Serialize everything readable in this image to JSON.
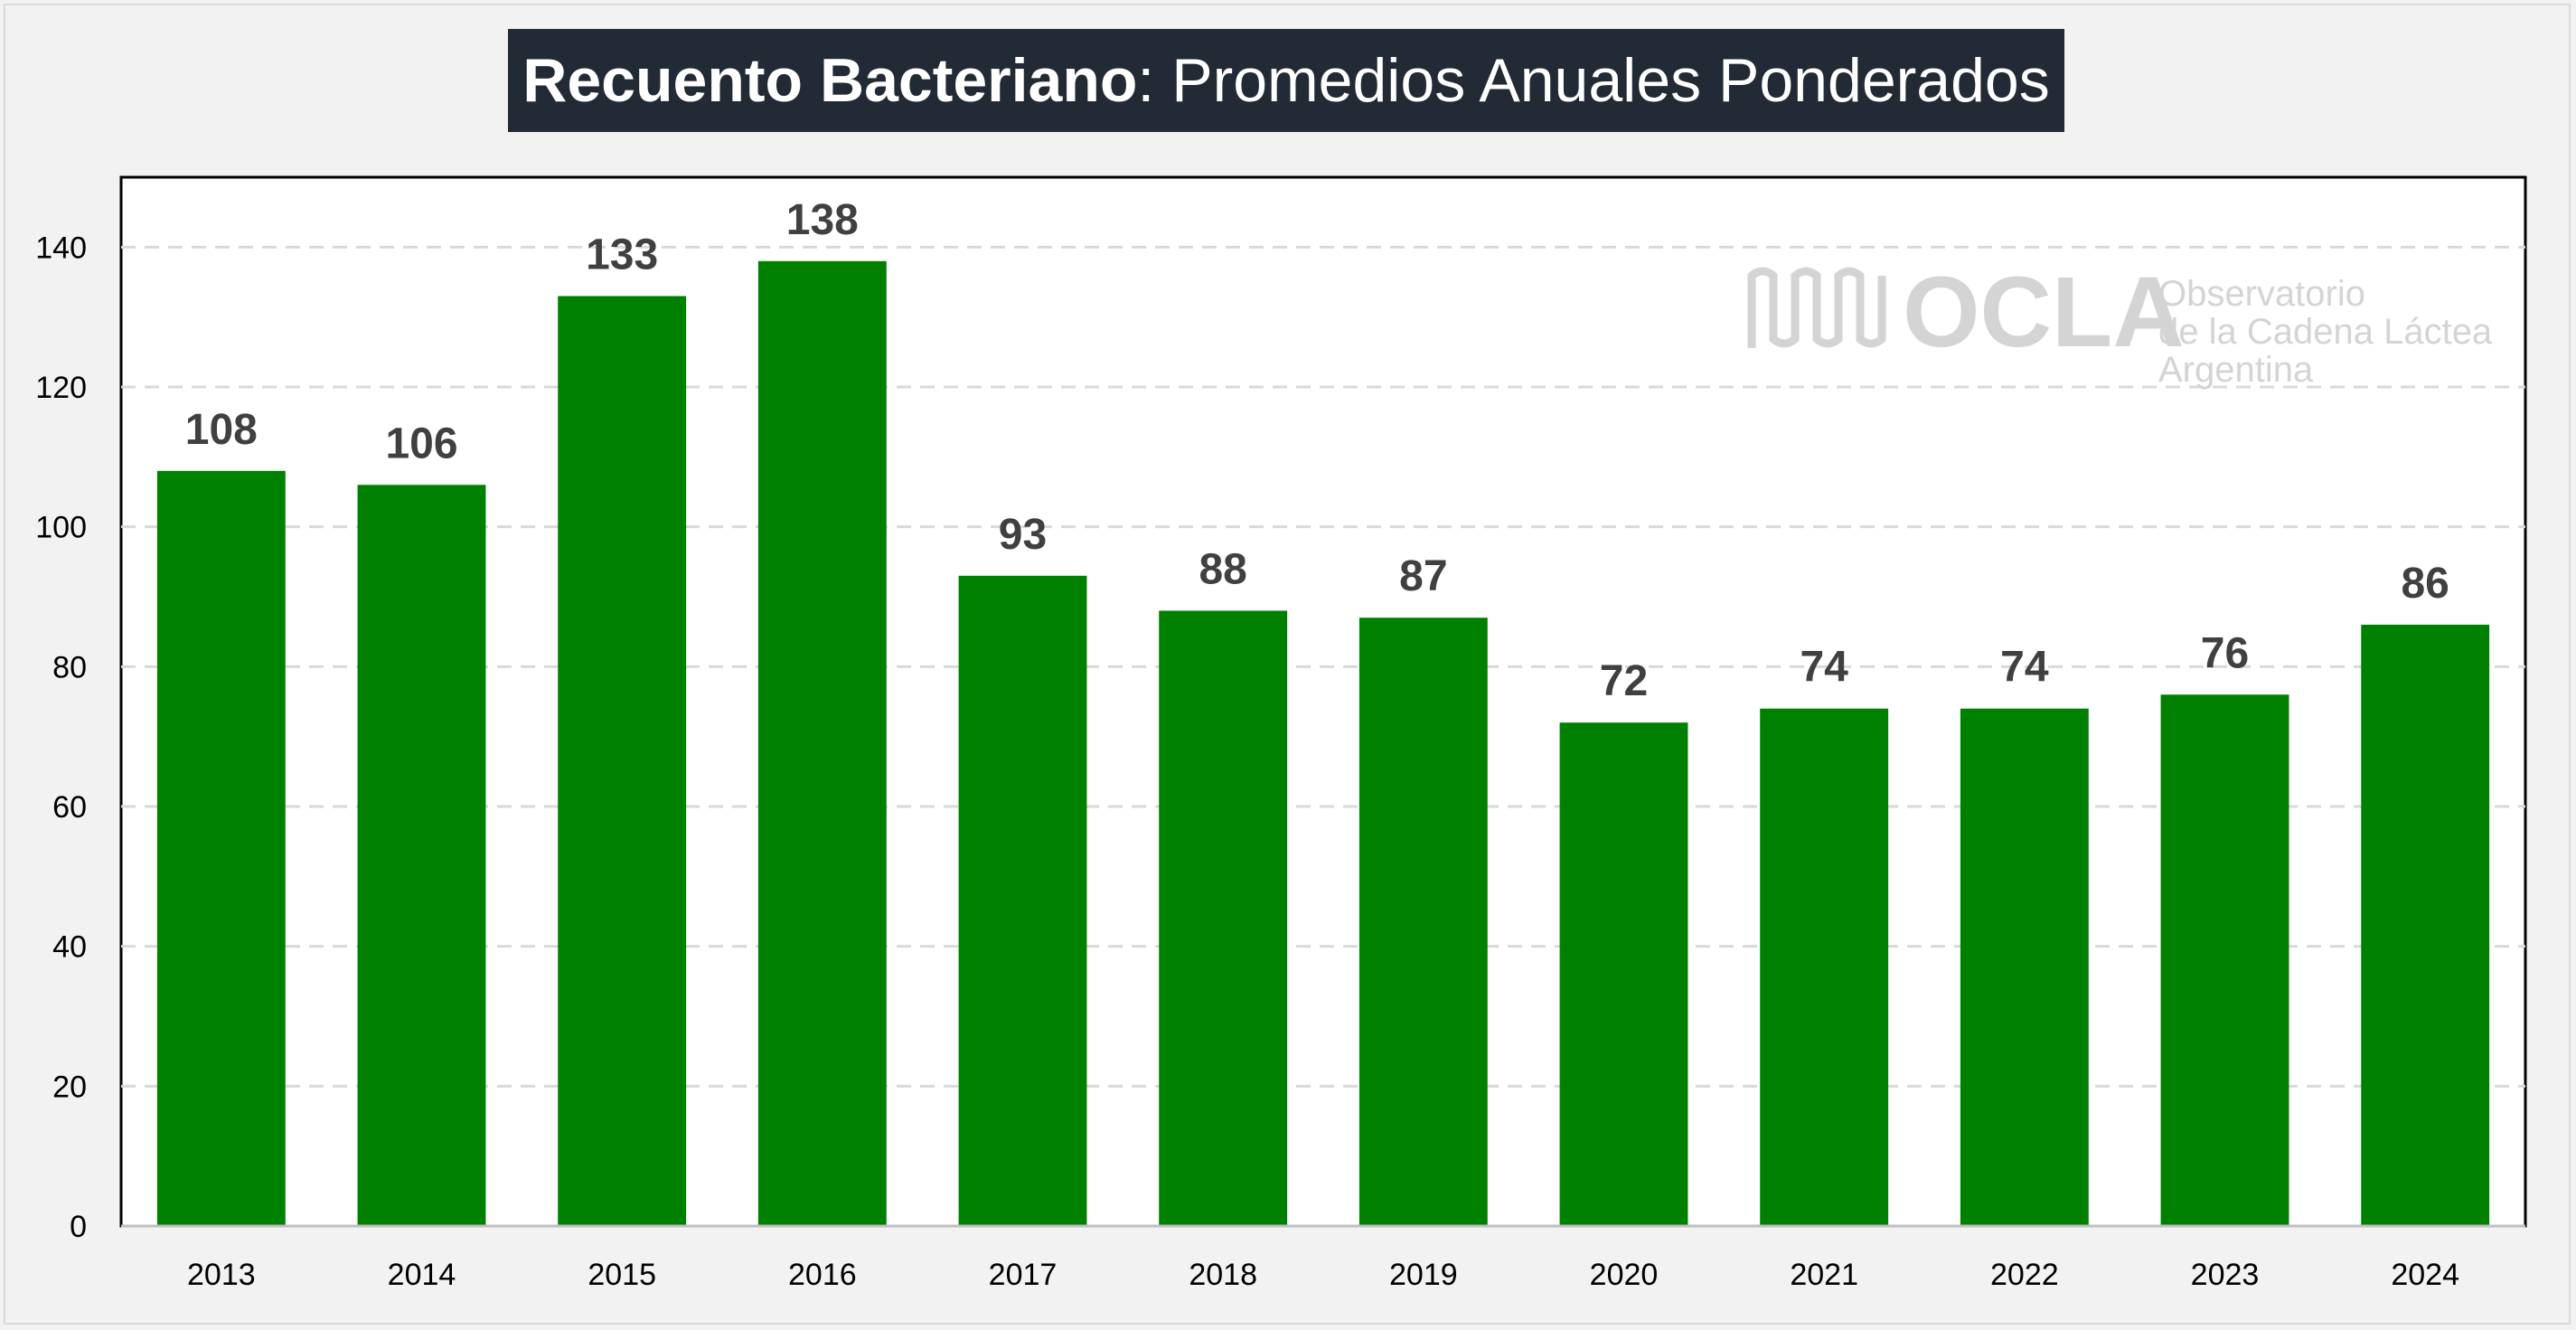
{
  "title": {
    "bold": "Recuento Bacteriano",
    "rest": ": Promedios Anuales Ponderados"
  },
  "watermark": {
    "name": "OCLA",
    "line1": "Observatorio",
    "line2": "de la Cadena Láctea",
    "line3": "Argentina"
  },
  "colors": {
    "bar": "#008000",
    "title_bg": "#222a35",
    "grid": "#d9d9d9"
  },
  "chart_data": {
    "type": "bar",
    "title": "Recuento Bacteriano: Promedios Anuales Ponderados",
    "categories": [
      "2013",
      "2014",
      "2015",
      "2016",
      "2017",
      "2018",
      "2019",
      "2020",
      "2021",
      "2022",
      "2023",
      "2024"
    ],
    "values": [
      108,
      106,
      133,
      138,
      93,
      88,
      87,
      72,
      74,
      74,
      76,
      86
    ],
    "data_labels": [
      "108",
      "106",
      "133",
      "138",
      "93",
      "88",
      "87",
      "72",
      "74",
      "74",
      "76",
      "86"
    ],
    "ylim": [
      0,
      150
    ],
    "yticks": [
      0,
      20,
      40,
      60,
      80,
      100,
      120,
      140
    ],
    "xlabel": "",
    "ylabel": "",
    "grid": true,
    "legend": "none"
  }
}
